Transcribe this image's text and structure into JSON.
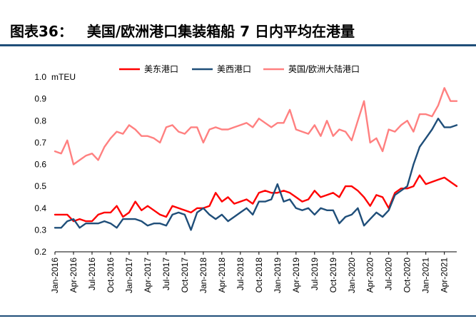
{
  "figure": {
    "label": "图表36：",
    "title": "美国/欧洲港口集装箱船 7 日内平均在港量"
  },
  "chart_data": {
    "type": "line",
    "ylabel": "mTEU",
    "ylim": [
      0.2,
      1.0
    ],
    "yticks": [
      "1.0",
      "0.9",
      "0.8",
      "0.7",
      "0.6",
      "0.5",
      "0.4",
      "0.3",
      "0.2"
    ],
    "ytick_values": [
      1.0,
      0.9,
      0.8,
      0.7,
      0.6,
      0.5,
      0.4,
      0.3,
      0.2
    ],
    "x_range": [
      "2016-01",
      "2021-06"
    ],
    "xticks": [
      {
        "date": "2016-01",
        "label": "Jan-2016"
      },
      {
        "date": "2016-04",
        "label": "Apr-2016"
      },
      {
        "date": "2016-07",
        "label": "Jul-2016"
      },
      {
        "date": "2016-10",
        "label": "Oct-2016"
      },
      {
        "date": "2017-01",
        "label": "Jan-2017"
      },
      {
        "date": "2017-04",
        "label": "Apr-2017"
      },
      {
        "date": "2017-07",
        "label": "Jul-2017"
      },
      {
        "date": "2017-10",
        "label": "Oct-2017"
      },
      {
        "date": "2018-01",
        "label": "Jan-2018"
      },
      {
        "date": "2018-04",
        "label": "Apr-2018"
      },
      {
        "date": "2018-07",
        "label": "Jul-2018"
      },
      {
        "date": "2018-10",
        "label": "Oct-2018"
      },
      {
        "date": "2019-01",
        "label": "Jan-2019"
      },
      {
        "date": "2019-04",
        "label": "Apr-2019"
      },
      {
        "date": "2019-07",
        "label": "Jul-2019"
      },
      {
        "date": "2019-10",
        "label": "Oct-2019"
      },
      {
        "date": "2020-01",
        "label": "Jan-2020"
      },
      {
        "date": "2020-04",
        "label": "Apr-2020"
      },
      {
        "date": "2020-07",
        "label": "Jul-2020"
      },
      {
        "date": "2020-10",
        "label": "Oct-2020"
      },
      {
        "date": "2021-01",
        "label": "Jan-2021"
      },
      {
        "date": "2021-04",
        "label": "Apr-2021"
      }
    ],
    "legend_position": "top",
    "grid": false,
    "series": [
      {
        "name": "美东港口",
        "color": "#ff0000",
        "x": [
          "2016-01",
          "2016-02",
          "2016-03",
          "2016-04",
          "2016-05",
          "2016-06",
          "2016-07",
          "2016-08",
          "2016-09",
          "2016-10",
          "2016-11",
          "2016-12",
          "2017-01",
          "2017-02",
          "2017-03",
          "2017-04",
          "2017-05",
          "2017-06",
          "2017-07",
          "2017-08",
          "2017-09",
          "2017-10",
          "2017-11",
          "2017-12",
          "2018-01",
          "2018-02",
          "2018-03",
          "2018-04",
          "2018-05",
          "2018-06",
          "2018-07",
          "2018-08",
          "2018-09",
          "2018-10",
          "2018-11",
          "2018-12",
          "2019-01",
          "2019-02",
          "2019-03",
          "2019-04",
          "2019-05",
          "2019-06",
          "2019-07",
          "2019-08",
          "2019-09",
          "2019-10",
          "2019-11",
          "2019-12",
          "2020-01",
          "2020-02",
          "2020-03",
          "2020-04",
          "2020-05",
          "2020-06",
          "2020-07",
          "2020-08",
          "2020-09",
          "2020-10",
          "2020-11",
          "2020-12",
          "2021-01",
          "2021-02",
          "2021-03",
          "2021-04",
          "2021-05",
          "2021-06"
        ],
        "y": [
          0.37,
          0.37,
          0.37,
          0.34,
          0.35,
          0.34,
          0.34,
          0.37,
          0.38,
          0.38,
          0.41,
          0.36,
          0.38,
          0.43,
          0.39,
          0.41,
          0.39,
          0.37,
          0.36,
          0.41,
          0.4,
          0.39,
          0.38,
          0.4,
          0.4,
          0.41,
          0.47,
          0.43,
          0.45,
          0.42,
          0.43,
          0.44,
          0.42,
          0.47,
          0.48,
          0.47,
          0.47,
          0.48,
          0.47,
          0.45,
          0.43,
          0.44,
          0.48,
          0.45,
          0.46,
          0.47,
          0.45,
          0.5,
          0.5,
          0.48,
          0.45,
          0.41,
          0.46,
          0.45,
          0.4,
          0.47,
          0.49,
          0.49,
          0.5,
          0.55,
          0.51,
          0.52,
          0.53,
          0.54,
          0.52,
          0.5
        ]
      },
      {
        "name": "美西港口",
        "color": "#1f4e79",
        "x": [
          "2016-01",
          "2016-02",
          "2016-03",
          "2016-04",
          "2016-05",
          "2016-06",
          "2016-07",
          "2016-08",
          "2016-09",
          "2016-10",
          "2016-11",
          "2016-12",
          "2017-01",
          "2017-02",
          "2017-03",
          "2017-04",
          "2017-05",
          "2017-06",
          "2017-07",
          "2017-08",
          "2017-09",
          "2017-10",
          "2017-11",
          "2017-12",
          "2018-01",
          "2018-02",
          "2018-03",
          "2018-04",
          "2018-05",
          "2018-06",
          "2018-07",
          "2018-08",
          "2018-09",
          "2018-10",
          "2018-11",
          "2018-12",
          "2019-01",
          "2019-02",
          "2019-03",
          "2019-04",
          "2019-05",
          "2019-06",
          "2019-07",
          "2019-08",
          "2019-09",
          "2019-10",
          "2019-11",
          "2019-12",
          "2020-01",
          "2020-02",
          "2020-03",
          "2020-04",
          "2020-05",
          "2020-06",
          "2020-07",
          "2020-08",
          "2020-09",
          "2020-10",
          "2020-11",
          "2020-12",
          "2021-01",
          "2021-02",
          "2021-03",
          "2021-04",
          "2021-05",
          "2021-06"
        ],
        "y": [
          0.31,
          0.31,
          0.34,
          0.35,
          0.31,
          0.33,
          0.33,
          0.33,
          0.34,
          0.33,
          0.31,
          0.35,
          0.35,
          0.35,
          0.34,
          0.32,
          0.33,
          0.33,
          0.32,
          0.37,
          0.38,
          0.37,
          0.3,
          0.38,
          0.4,
          0.37,
          0.35,
          0.37,
          0.34,
          0.36,
          0.38,
          0.4,
          0.37,
          0.43,
          0.43,
          0.44,
          0.51,
          0.43,
          0.44,
          0.4,
          0.39,
          0.4,
          0.37,
          0.4,
          0.39,
          0.39,
          0.33,
          0.36,
          0.37,
          0.4,
          0.32,
          0.35,
          0.38,
          0.36,
          0.39,
          0.46,
          0.48,
          0.5,
          0.6,
          0.68,
          0.72,
          0.76,
          0.81,
          0.77,
          0.77,
          0.78
        ]
      },
      {
        "name": "英国/欧洲大陆港口",
        "color": "#ff8080",
        "x": [
          "2016-01",
          "2016-02",
          "2016-03",
          "2016-04",
          "2016-05",
          "2016-06",
          "2016-07",
          "2016-08",
          "2016-09",
          "2016-10",
          "2016-11",
          "2016-12",
          "2017-01",
          "2017-02",
          "2017-03",
          "2017-04",
          "2017-05",
          "2017-06",
          "2017-07",
          "2017-08",
          "2017-09",
          "2017-10",
          "2017-11",
          "2017-12",
          "2018-01",
          "2018-02",
          "2018-03",
          "2018-04",
          "2018-05",
          "2018-06",
          "2018-07",
          "2018-08",
          "2018-09",
          "2018-10",
          "2018-11",
          "2018-12",
          "2019-01",
          "2019-02",
          "2019-03",
          "2019-04",
          "2019-05",
          "2019-06",
          "2019-07",
          "2019-08",
          "2019-09",
          "2019-10",
          "2019-11",
          "2019-12",
          "2020-01",
          "2020-02",
          "2020-03",
          "2020-04",
          "2020-05",
          "2020-06",
          "2020-07",
          "2020-08",
          "2020-09",
          "2020-10",
          "2020-11",
          "2020-12",
          "2021-01",
          "2021-02",
          "2021-03",
          "2021-04",
          "2021-05",
          "2021-06"
        ],
        "y": [
          0.66,
          0.65,
          0.71,
          0.6,
          0.62,
          0.64,
          0.65,
          0.62,
          0.68,
          0.72,
          0.75,
          0.74,
          0.78,
          0.76,
          0.73,
          0.73,
          0.72,
          0.7,
          0.77,
          0.78,
          0.75,
          0.74,
          0.77,
          0.77,
          0.7,
          0.76,
          0.77,
          0.76,
          0.76,
          0.77,
          0.78,
          0.79,
          0.77,
          0.81,
          0.79,
          0.77,
          0.79,
          0.79,
          0.85,
          0.76,
          0.75,
          0.74,
          0.78,
          0.73,
          0.8,
          0.73,
          0.76,
          0.75,
          0.71,
          0.8,
          0.89,
          0.7,
          0.72,
          0.66,
          0.76,
          0.75,
          0.78,
          0.8,
          0.75,
          0.83,
          0.83,
          0.82,
          0.87,
          0.95,
          0.89,
          0.89
        ]
      }
    ]
  }
}
